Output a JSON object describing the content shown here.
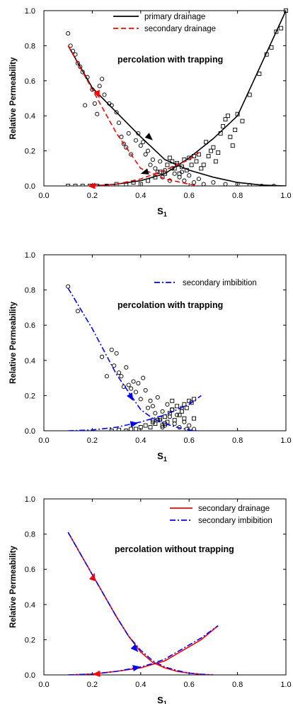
{
  "colors": {
    "primary": "#000000",
    "secondary_drainage": "#ff0000",
    "secondary_imbibition": "#0000ff",
    "markers": "#000000"
  },
  "chart_data": [
    {
      "type": "line",
      "ylabel": "Relative Permeability",
      "xlabel": "S",
      "xlabel_sub": "1",
      "xlim": [
        0,
        1
      ],
      "ylim": [
        0,
        1
      ],
      "xticks": [
        "0.0",
        "0.2",
        "0.4",
        "0.6",
        "0.8",
        "1.0"
      ],
      "yticks": [
        "0.0",
        "0.2",
        "0.4",
        "0.6",
        "0.8",
        "1.0"
      ],
      "annotation": "percolation with trapping",
      "legend_position": "top-center",
      "series": [
        {
          "name": "primary drainage",
          "style": "solid",
          "color": "#000000",
          "x": [
            0.1,
            0.2,
            0.3,
            0.4,
            0.5,
            0.6,
            0.7,
            0.8,
            0.9,
            1.0
          ],
          "y": [
            0.8,
            0.56,
            0.42,
            0.28,
            0.15,
            0.09,
            0.05,
            0.02,
            0.005,
            0.0
          ]
        },
        {
          "name": "",
          "style": "solid",
          "color": "#000000",
          "x": [
            0.2,
            0.3,
            0.4,
            0.5,
            0.6,
            0.7,
            0.8,
            0.9,
            0.95,
            1.0
          ],
          "y": [
            0.0,
            0.01,
            0.03,
            0.07,
            0.16,
            0.27,
            0.4,
            0.7,
            0.85,
            1.0
          ]
        },
        {
          "name": "secondary drainage",
          "style": "dashed",
          "color": "#ff0000",
          "x": [
            0.1,
            0.2,
            0.3,
            0.4,
            0.5,
            0.6,
            0.64
          ],
          "y": [
            0.8,
            0.55,
            0.3,
            0.1,
            0.04,
            0.01,
            0.0
          ]
        },
        {
          "name": "",
          "style": "dashed",
          "color": "#ff0000",
          "x": [
            0.2,
            0.3,
            0.4,
            0.5,
            0.6,
            0.64
          ],
          "y": [
            0.0,
            0.01,
            0.04,
            0.09,
            0.15,
            0.19
          ]
        }
      ],
      "circles": [
        [
          0.1,
          0.87
        ],
        [
          0.11,
          0.8
        ],
        [
          0.12,
          0.77
        ],
        [
          0.13,
          0.75
        ],
        [
          0.14,
          0.7
        ],
        [
          0.15,
          0.68
        ],
        [
          0.16,
          0.65
        ],
        [
          0.17,
          0.46
        ],
        [
          0.18,
          0.62
        ],
        [
          0.2,
          0.55
        ],
        [
          0.21,
          0.47
        ],
        [
          0.22,
          0.41
        ],
        [
          0.23,
          0.57
        ],
        [
          0.24,
          0.61
        ],
        [
          0.25,
          0.52
        ],
        [
          0.27,
          0.47
        ],
        [
          0.28,
          0.46
        ],
        [
          0.3,
          0.42
        ],
        [
          0.31,
          0.36
        ],
        [
          0.32,
          0.28
        ],
        [
          0.33,
          0.24
        ],
        [
          0.34,
          0.22
        ],
        [
          0.35,
          0.3
        ],
        [
          0.36,
          0.18
        ],
        [
          0.38,
          0.26
        ],
        [
          0.39,
          0.3
        ],
        [
          0.4,
          0.23
        ],
        [
          0.41,
          0.25
        ],
        [
          0.42,
          0.18
        ],
        [
          0.43,
          0.2
        ],
        [
          0.44,
          0.12
        ],
        [
          0.45,
          0.15
        ],
        [
          0.46,
          0.1
        ],
        [
          0.47,
          0.08
        ],
        [
          0.48,
          0.14
        ],
        [
          0.49,
          0.05
        ],
        [
          0.5,
          0.09
        ],
        [
          0.52,
          0.03
        ],
        [
          0.53,
          0.1
        ],
        [
          0.54,
          0.07
        ],
        [
          0.55,
          0.12
        ],
        [
          0.56,
          0.05
        ],
        [
          0.57,
          0.08
        ],
        [
          0.58,
          0.03
        ],
        [
          0.6,
          0.06
        ],
        [
          0.62,
          0.02
        ],
        [
          0.64,
          0.04
        ],
        [
          0.66,
          0.01
        ],
        [
          0.7,
          0.02
        ],
        [
          0.75,
          0.01
        ],
        [
          0.8,
          0.01
        ],
        [
          0.85,
          0.005
        ],
        [
          0.9,
          0.0
        ],
        [
          0.95,
          0.0
        ]
      ],
      "squares": [
        [
          0.1,
          0.0
        ],
        [
          0.13,
          0.0
        ],
        [
          0.16,
          0.0
        ],
        [
          0.19,
          0.0
        ],
        [
          0.22,
          0.0
        ],
        [
          0.26,
          0.0
        ],
        [
          0.3,
          0.01
        ],
        [
          0.34,
          0.005
        ],
        [
          0.37,
          0.02
        ],
        [
          0.4,
          0.01
        ],
        [
          0.43,
          0.03
        ],
        [
          0.46,
          0.05
        ],
        [
          0.48,
          0.08
        ],
        [
          0.5,
          0.07
        ],
        [
          0.51,
          0.12
        ],
        [
          0.52,
          0.16
        ],
        [
          0.53,
          0.14
        ],
        [
          0.54,
          0.1
        ],
        [
          0.55,
          0.13
        ],
        [
          0.56,
          0.07
        ],
        [
          0.57,
          0.11
        ],
        [
          0.58,
          0.15
        ],
        [
          0.59,
          0.09
        ],
        [
          0.6,
          0.16
        ],
        [
          0.61,
          0.12
        ],
        [
          0.62,
          0.17
        ],
        [
          0.63,
          0.14
        ],
        [
          0.64,
          0.18
        ],
        [
          0.65,
          0.1
        ],
        [
          0.66,
          0.12
        ],
        [
          0.67,
          0.25
        ],
        [
          0.68,
          0.17
        ],
        [
          0.69,
          0.2
        ],
        [
          0.7,
          0.22
        ],
        [
          0.71,
          0.14
        ],
        [
          0.72,
          0.19
        ],
        [
          0.73,
          0.3
        ],
        [
          0.74,
          0.34
        ],
        [
          0.75,
          0.38
        ],
        [
          0.76,
          0.4
        ],
        [
          0.77,
          0.28
        ],
        [
          0.78,
          0.23
        ],
        [
          0.79,
          0.32
        ],
        [
          0.8,
          0.41
        ],
        [
          0.82,
          0.37
        ],
        [
          0.85,
          0.52
        ],
        [
          0.89,
          0.64
        ],
        [
          0.92,
          0.75
        ],
        [
          0.94,
          0.79
        ],
        [
          0.96,
          0.88
        ],
        [
          0.98,
          0.9
        ],
        [
          1.0,
          1.0
        ]
      ],
      "arrows": [
        {
          "x1": 0.41,
          "y1": 0.31,
          "x2": 0.45,
          "y2": 0.26,
          "color": "#000000"
        },
        {
          "x1": 0.46,
          "y1": 0.095,
          "x2": 0.4,
          "y2": 0.07,
          "color": "#000000"
        },
        {
          "x1": 0.21,
          "y1": 0.57,
          "x2": 0.23,
          "y2": 0.5,
          "color": "#ff0000"
        },
        {
          "x1": 0.23,
          "y1": 0.0,
          "x2": 0.18,
          "y2": 0.0,
          "color": "#ff0000"
        }
      ]
    },
    {
      "type": "line",
      "ylabel": "Relative Permeability",
      "xlabel": "S",
      "xlabel_sub": "1",
      "xlim": [
        0,
        1
      ],
      "ylim": [
        0,
        1
      ],
      "xticks": [
        "0.0",
        "0.2",
        "0.4",
        "0.6",
        "0.8",
        "1.0"
      ],
      "yticks": [
        "0.0",
        "0.2",
        "0.4",
        "0.6",
        "0.8",
        "1.0"
      ],
      "annotation": "percolation with trapping",
      "legend_position": "top-right",
      "series": [
        {
          "name": "secondary imbibition",
          "style": "dashdot",
          "color": "#0000ff",
          "x": [
            0.1,
            0.2,
            0.3,
            0.4,
            0.45,
            0.5,
            0.55,
            0.6,
            0.64
          ],
          "y": [
            0.81,
            0.58,
            0.32,
            0.12,
            0.07,
            0.04,
            0.02,
            0.005,
            0.0
          ]
        },
        {
          "name": "",
          "style": "dashdot",
          "color": "#0000ff",
          "x": [
            0.1,
            0.2,
            0.3,
            0.4,
            0.5,
            0.6,
            0.65
          ],
          "y": [
            0.0,
            0.005,
            0.02,
            0.05,
            0.09,
            0.15,
            0.2
          ]
        }
      ],
      "circles": [
        [
          0.1,
          0.82
        ],
        [
          0.14,
          0.68
        ],
        [
          0.24,
          0.42
        ],
        [
          0.28,
          0.46
        ],
        [
          0.29,
          0.37
        ],
        [
          0.3,
          0.44
        ],
        [
          0.31,
          0.33
        ],
        [
          0.32,
          0.31
        ],
        [
          0.33,
          0.25
        ],
        [
          0.34,
          0.36
        ],
        [
          0.35,
          0.26
        ],
        [
          0.36,
          0.24
        ],
        [
          0.37,
          0.28
        ],
        [
          0.38,
          0.22
        ],
        [
          0.39,
          0.27
        ],
        [
          0.4,
          0.18
        ],
        [
          0.41,
          0.3
        ],
        [
          0.42,
          0.23
        ],
        [
          0.43,
          0.13
        ],
        [
          0.44,
          0.17
        ],
        [
          0.45,
          0.14
        ],
        [
          0.46,
          0.1
        ],
        [
          0.47,
          0.19
        ],
        [
          0.48,
          0.06
        ],
        [
          0.49,
          0.11
        ],
        [
          0.5,
          0.03
        ],
        [
          0.51,
          0.15
        ],
        [
          0.52,
          0.08
        ],
        [
          0.53,
          0.12
        ],
        [
          0.54,
          0.04
        ],
        [
          0.55,
          0.09
        ],
        [
          0.56,
          0.02
        ],
        [
          0.57,
          0.13
        ],
        [
          0.58,
          0.05
        ],
        [
          0.59,
          0.01
        ],
        [
          0.6,
          0.03
        ],
        [
          0.62,
          0.01
        ],
        [
          0.26,
          0.31
        ],
        [
          0.45,
          0.06
        ],
        [
          0.49,
          0.02
        ]
      ],
      "squares": [
        [
          0.28,
          0.0
        ],
        [
          0.31,
          0.005
        ],
        [
          0.34,
          0.0
        ],
        [
          0.36,
          0.01
        ],
        [
          0.38,
          0.01
        ],
        [
          0.4,
          0.02
        ],
        [
          0.42,
          0.03
        ],
        [
          0.44,
          0.02
        ],
        [
          0.45,
          0.05
        ],
        [
          0.46,
          0.04
        ],
        [
          0.47,
          0.06
        ],
        [
          0.48,
          0.07
        ],
        [
          0.49,
          0.03
        ],
        [
          0.5,
          0.08
        ],
        [
          0.51,
          0.05
        ],
        [
          0.52,
          0.1
        ],
        [
          0.53,
          0.12
        ],
        [
          0.54,
          0.06
        ],
        [
          0.55,
          0.14
        ],
        [
          0.56,
          0.09
        ],
        [
          0.57,
          0.11
        ],
        [
          0.58,
          0.15
        ],
        [
          0.59,
          0.13
        ],
        [
          0.6,
          0.17
        ],
        [
          0.61,
          0.16
        ],
        [
          0.62,
          0.18
        ],
        [
          0.62,
          0.07
        ],
        [
          0.58,
          0.07
        ],
        [
          0.53,
          0.17
        ],
        [
          0.5,
          0.04
        ]
      ],
      "arrows": [
        {
          "x1": 0.33,
          "y1": 0.26,
          "x2": 0.37,
          "y2": 0.17,
          "color": "#0000ff"
        },
        {
          "x1": 0.33,
          "y1": 0.03,
          "x2": 0.39,
          "y2": 0.045,
          "color": "#0000ff"
        }
      ]
    },
    {
      "type": "line",
      "ylabel": "Relative Permeability",
      "xlabel": "S",
      "xlabel_sub": "1",
      "xlim": [
        0,
        1
      ],
      "ylim": [
        0,
        1
      ],
      "xticks": [
        "0.0",
        "0.2",
        "0.4",
        "0.6",
        "0.8",
        "1.0"
      ],
      "yticks": [
        "0.0",
        "0.2",
        "0.4",
        "0.6",
        "0.8",
        "1.0"
      ],
      "annotation": "percolation without trapping",
      "legend_position": "top-right",
      "series": [
        {
          "name": "secondary drainage",
          "style": "solid",
          "color": "#ff0000",
          "x": [
            0.1,
            0.15,
            0.2,
            0.25,
            0.3,
            0.35,
            0.4,
            0.45,
            0.5,
            0.55,
            0.6,
            0.65,
            0.7
          ],
          "y": [
            0.81,
            0.69,
            0.57,
            0.45,
            0.33,
            0.22,
            0.13,
            0.07,
            0.04,
            0.02,
            0.01,
            0.003,
            0.0
          ]
        },
        {
          "name": "",
          "style": "solid",
          "color": "#ff0000",
          "x": [
            0.1,
            0.2,
            0.3,
            0.4,
            0.45,
            0.5,
            0.55,
            0.6,
            0.65,
            0.72
          ],
          "y": [
            0.0,
            0.005,
            0.02,
            0.04,
            0.06,
            0.08,
            0.12,
            0.16,
            0.2,
            0.28
          ]
        },
        {
          "name": "secondary imbibition",
          "style": "dashdot",
          "color": "#0000ff",
          "x": [
            0.1,
            0.15,
            0.2,
            0.25,
            0.3,
            0.35,
            0.4,
            0.45,
            0.5,
            0.55,
            0.6,
            0.65,
            0.7
          ],
          "y": [
            0.81,
            0.69,
            0.57,
            0.45,
            0.33,
            0.22,
            0.14,
            0.08,
            0.045,
            0.025,
            0.01,
            0.004,
            0.0
          ]
        },
        {
          "name": "",
          "style": "dashdot",
          "color": "#0000ff",
          "x": [
            0.1,
            0.2,
            0.3,
            0.4,
            0.45,
            0.5,
            0.55,
            0.6,
            0.65,
            0.72
          ],
          "y": [
            0.0,
            0.005,
            0.02,
            0.045,
            0.065,
            0.09,
            0.13,
            0.17,
            0.21,
            0.28
          ]
        }
      ],
      "circles": [],
      "squares": [],
      "arrows": [
        {
          "x1": 0.2,
          "y1": 0.54,
          "x2": 0.21,
          "y2": 0.58,
          "color": "#ff0000"
        },
        {
          "x1": 0.26,
          "y1": 0.01,
          "x2": 0.2,
          "y2": 0.003,
          "color": "#ff0000"
        },
        {
          "x1": 0.35,
          "y1": 0.19,
          "x2": 0.39,
          "y2": 0.13,
          "color": "#0000ff"
        },
        {
          "x1": 0.33,
          "y1": 0.028,
          "x2": 0.4,
          "y2": 0.046,
          "color": "#0000ff"
        }
      ]
    }
  ]
}
